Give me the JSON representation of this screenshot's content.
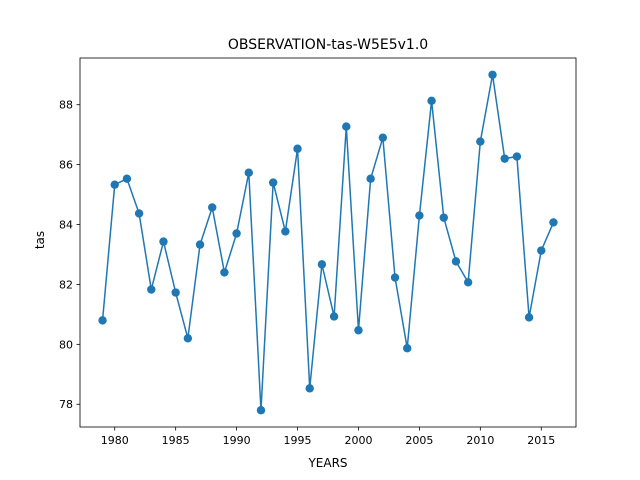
{
  "chart_data": {
    "type": "line",
    "title": "OBSERVATION-tas-W5E5v1.0",
    "xlabel": "YEARS",
    "ylabel": "tas",
    "xlim": [
      1977.15,
      2017.85
    ],
    "ylim": [
      77.24,
      89.56
    ],
    "grid": false,
    "marker": "circle",
    "color": "#1f77b4",
    "x_ticks": [
      1980,
      1985,
      1990,
      1995,
      2000,
      2005,
      2010,
      2015
    ],
    "x_tick_labels": [
      "1980",
      "1985",
      "1990",
      "1995",
      "2000",
      "2005",
      "2010",
      "2015"
    ],
    "y_ticks": [
      78,
      80,
      82,
      84,
      86,
      88
    ],
    "y_tick_labels": [
      "78",
      "80",
      "82",
      "84",
      "86",
      "88"
    ],
    "series": [
      {
        "x": [
          1979,
          1980,
          1981,
          1982,
          1983,
          1984,
          1985,
          1986,
          1987,
          1988,
          1989,
          1990,
          1991,
          1992,
          1993,
          1994,
          1995,
          1996,
          1997,
          1998,
          1999,
          2000,
          2001,
          2002,
          2003,
          2004,
          2005,
          2006,
          2007,
          2008,
          2009,
          2010,
          2011,
          2012,
          2013,
          2014,
          2015,
          2016
        ],
        "values": [
          80.8,
          85.33,
          85.53,
          84.37,
          81.83,
          83.43,
          81.73,
          80.2,
          83.33,
          84.57,
          82.4,
          83.7,
          85.73,
          77.8,
          85.4,
          83.77,
          86.53,
          78.53,
          82.67,
          80.93,
          87.27,
          80.47,
          85.53,
          86.9,
          82.23,
          79.87,
          84.3,
          88.13,
          84.23,
          82.77,
          82.07,
          86.77,
          89.0,
          86.2,
          86.27,
          80.9,
          83.13,
          84.07
        ]
      }
    ]
  }
}
